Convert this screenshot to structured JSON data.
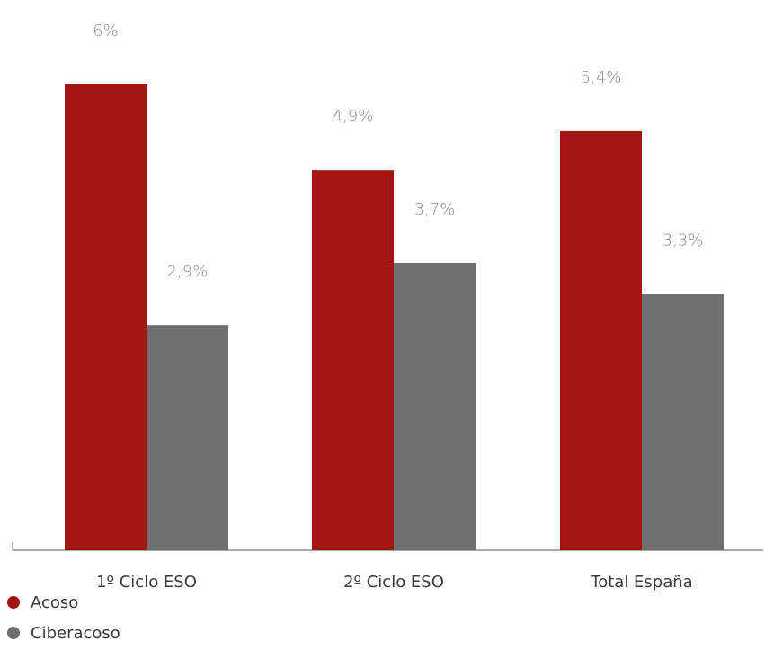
{
  "chart_data": {
    "type": "bar",
    "categories": [
      "1º Ciclo ESO",
      "2º Ciclo ESO",
      "Total España"
    ],
    "series": [
      {
        "name": "Acoso",
        "values": [
          6.0,
          4.9,
          5.4
        ],
        "labels": [
          "6%",
          "4,9%",
          "5,4%"
        ],
        "color": "#a31510"
      },
      {
        "name": "Ciberacoso",
        "values": [
          2.9,
          3.7,
          3.3
        ],
        "labels": [
          "2,9%",
          "3,7%",
          "3,3%"
        ],
        "color": "#6f6f6f"
      }
    ],
    "ylim": [
      0,
      6.5
    ],
    "grid": false,
    "legend": "bottom-left",
    "title": "",
    "xlabel": "",
    "ylabel": ""
  }
}
